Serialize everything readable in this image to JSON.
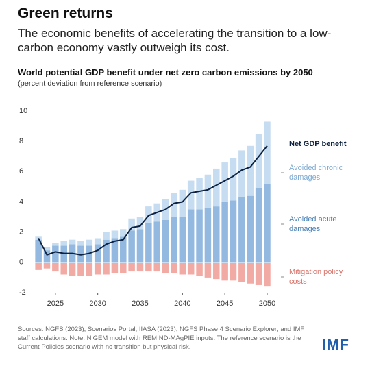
{
  "chart_data": {
    "type": "bar",
    "headline": "Green returns",
    "subtitle": "The economic benefits of accelerating the transition to a low-carbon economy vastly outweigh its cost.",
    "title": "World potential GDP benefit under net zero carbon emissions by 2050",
    "axis_note": "(percent deviation from reference scenario)",
    "note": "Sources: NGFS (2023), Scenarios Portal; IIASA (2023), NGFS Phase 4 Scenario Explorer; and IMF staff calculations. Note: NiGEM model with REMIND-MAgPIE inputs. The reference scenario is the Current Policies scenario with no transition but physical risk.",
    "logo": "IMF",
    "stacked": true,
    "x": [
      2023,
      2024,
      2025,
      2026,
      2027,
      2028,
      2029,
      2030,
      2031,
      2032,
      2033,
      2034,
      2035,
      2036,
      2037,
      2038,
      2039,
      2040,
      2041,
      2042,
      2043,
      2044,
      2045,
      2046,
      2047,
      2048,
      2049,
      2050
    ],
    "xlim": [
      2022.1,
      2050.65
    ],
    "xticks": [
      2025,
      2030,
      2035,
      2040,
      2045,
      2050
    ],
    "ylim": [
      -2,
      10
    ],
    "yticks": [
      -2,
      0,
      2,
      4,
      6,
      8,
      10
    ],
    "grid": false,
    "series": [
      {
        "name": "Avoided acute damages",
        "type": "bar",
        "color": "#93b9e0",
        "label_color": "#4a82b6",
        "values": [
          1.5,
          0.8,
          1.1,
          1.1,
          1.2,
          1.1,
          1.1,
          1.2,
          1.5,
          1.6,
          1.7,
          2.1,
          2.2,
          2.6,
          2.7,
          2.8,
          3.0,
          3.0,
          3.5,
          3.5,
          3.6,
          3.7,
          4.0,
          4.1,
          4.3,
          4.4,
          4.9,
          5.2
        ]
      },
      {
        "name": "Avoided chronic damages",
        "type": "bar",
        "color": "#c6dcf0",
        "label_color": "#7eaad2",
        "values": [
          0.2,
          0.2,
          0.2,
          0.3,
          0.3,
          0.3,
          0.4,
          0.4,
          0.5,
          0.5,
          0.5,
          0.8,
          0.8,
          1.1,
          1.2,
          1.4,
          1.6,
          1.8,
          1.9,
          2.1,
          2.2,
          2.5,
          2.6,
          2.8,
          3.1,
          3.3,
          3.6,
          4.1
        ]
      },
      {
        "name": "Mitigation policy costs",
        "type": "bar",
        "color": "#f2aba4",
        "label_color": "#d8756c",
        "values": [
          -0.5,
          -0.4,
          -0.6,
          -0.8,
          -0.9,
          -0.9,
          -0.9,
          -0.8,
          -0.8,
          -0.7,
          -0.7,
          -0.6,
          -0.6,
          -0.6,
          -0.6,
          -0.7,
          -0.7,
          -0.8,
          -0.8,
          -0.9,
          -1.0,
          -1.1,
          -1.2,
          -1.2,
          -1.3,
          -1.4,
          -1.5,
          -1.6
        ]
      },
      {
        "name": "Net GDP benefit",
        "type": "line",
        "color": "#0d2240",
        "label_color": "#0d2240",
        "values": [
          1.6,
          0.5,
          0.7,
          0.6,
          0.6,
          0.5,
          0.6,
          0.8,
          1.2,
          1.4,
          1.5,
          2.3,
          2.4,
          3.1,
          3.3,
          3.5,
          3.9,
          4.0,
          4.6,
          4.7,
          4.8,
          5.1,
          5.4,
          5.7,
          6.1,
          6.3,
          7.0,
          7.7
        ]
      }
    ]
  }
}
